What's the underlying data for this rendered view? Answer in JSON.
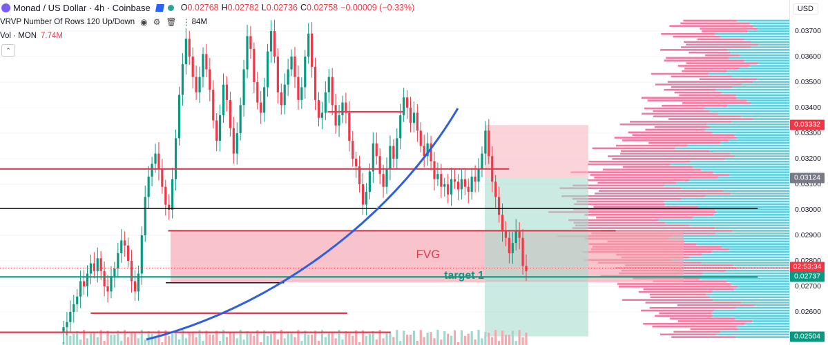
{
  "header": {
    "title": "Monad / US Dollar · 4h · Coinbase",
    "o_label": "O",
    "o_value": "0.02768",
    "h_label": "H",
    "h_value": "0.02782",
    "l_label": "L",
    "l_value": "0.02736",
    "c_label": "C",
    "c_value": "0.02758",
    "change": "−0.00009 (−0.33%)"
  },
  "indicator": {
    "vrvp_label": "VRVP Number Of Rows 120 Up/Down",
    "vrvp_value": "84M",
    "vol_label": "Vol · MON",
    "vol_value": "7.74M"
  },
  "currency_button": "USD",
  "chart_data": {
    "type": "candlestick",
    "symbol": "MON/USD",
    "interval": "4h",
    "exchange": "Coinbase",
    "ylim": [
      0.025,
      0.0375
    ],
    "y_ticks": [
      "0.03700",
      "0.03600",
      "0.03500",
      "0.03400",
      "0.03300",
      "0.03200",
      "0.03100",
      "0.03000",
      "0.02900",
      "0.02800",
      "0.02700",
      "0.02600"
    ],
    "price_badges": [
      {
        "value": "0.03332",
        "color": "#f23645"
      },
      {
        "value": "0.03124",
        "color": "#787b86"
      },
      {
        "value": "02:53:34",
        "color": "#f23645"
      },
      {
        "value": "0.02737",
        "color": "#089981"
      },
      {
        "value": "0.02504",
        "color": "#089981"
      }
    ],
    "last_price": 0.02758,
    "candles_close": [
      0.0254,
      0.0256,
      0.026,
      0.0263,
      0.0266,
      0.0272,
      0.027,
      0.0275,
      0.0279,
      0.0276,
      0.0281,
      0.0276,
      0.027,
      0.0268,
      0.0274,
      0.0277,
      0.0283,
      0.0288,
      0.0286,
      0.028,
      0.0272,
      0.0268,
      0.0275,
      0.029,
      0.0305,
      0.0313,
      0.0318,
      0.0322,
      0.0316,
      0.0309,
      0.0302,
      0.03,
      0.0312,
      0.0328,
      0.0345,
      0.0357,
      0.0367,
      0.036,
      0.0352,
      0.0346,
      0.0352,
      0.0361,
      0.0355,
      0.0347,
      0.0335,
      0.0327,
      0.0337,
      0.0349,
      0.0343,
      0.0332,
      0.0322,
      0.033,
      0.0341,
      0.0355,
      0.0368,
      0.0363,
      0.035,
      0.0342,
      0.0338,
      0.0348,
      0.0362,
      0.037,
      0.036,
      0.0346,
      0.0341,
      0.0349,
      0.0355,
      0.036,
      0.0352,
      0.0343,
      0.0348,
      0.036,
      0.0369,
      0.0356,
      0.0343,
      0.0336,
      0.0338,
      0.0346,
      0.0352,
      0.0341,
      0.0333,
      0.0337,
      0.0342,
      0.0338,
      0.0327,
      0.032,
      0.0317,
      0.031,
      0.0302,
      0.0307,
      0.0315,
      0.0326,
      0.0321,
      0.0314,
      0.0309,
      0.0316,
      0.0325,
      0.032,
      0.0328,
      0.0337,
      0.0344,
      0.034,
      0.0334,
      0.0338,
      0.0331,
      0.0325,
      0.0321,
      0.0326,
      0.0319,
      0.0312,
      0.0314,
      0.0309,
      0.031,
      0.0306,
      0.0312,
      0.0311,
      0.0308,
      0.0312,
      0.0309,
      0.0307,
      0.0313,
      0.0311,
      0.0316,
      0.0322,
      0.0331,
      0.0321,
      0.0311,
      0.0305,
      0.0298,
      0.0292,
      0.0289,
      0.0283,
      0.0287,
      0.0292,
      0.0289,
      0.0278,
      0.0276
    ],
    "horizontal_lines": [
      {
        "price": 0.03384,
        "color": "#e23a4f",
        "from": 0.415,
        "to": 0.51
      },
      {
        "price": 0.0316,
        "color": "#e23a4f",
        "from": 0.0,
        "to": 0.645
      },
      {
        "price": 0.03005,
        "color": "#000000",
        "from": 0.0,
        "to": 0.96
      },
      {
        "price": 0.02918,
        "color": "#e23a4f",
        "from": 0.213,
        "to": 0.78
      },
      {
        "price": 0.02737,
        "color": "#089981",
        "from": 0.0,
        "to": 0.96
      },
      {
        "price": 0.02714,
        "color": "#000000",
        "from": 0.21,
        "to": 0.36
      },
      {
        "price": 0.02595,
        "color": "#e23a4f",
        "from": 0.115,
        "to": 0.44
      },
      {
        "price": 0.0252,
        "color": "#e23a4f",
        "from": 0.0,
        "to": 0.495
      }
    ],
    "zones": [
      {
        "name": "fvg",
        "top": 0.02918,
        "bottom": 0.02716,
        "color": "#f5a3ad"
      },
      {
        "name": "short-risk",
        "top": 0.03332,
        "bottom": 0.03124,
        "color": "#f7b8c0"
      },
      {
        "name": "short-reward",
        "top": 0.03124,
        "bottom": 0.02504,
        "color": "#a6dccf"
      }
    ],
    "annotations": [
      {
        "text": "FVG",
        "price": 0.02825,
        "color": "#e23a4f"
      },
      {
        "text": "target 1",
        "price": 0.0274,
        "color": "#089981"
      }
    ]
  }
}
